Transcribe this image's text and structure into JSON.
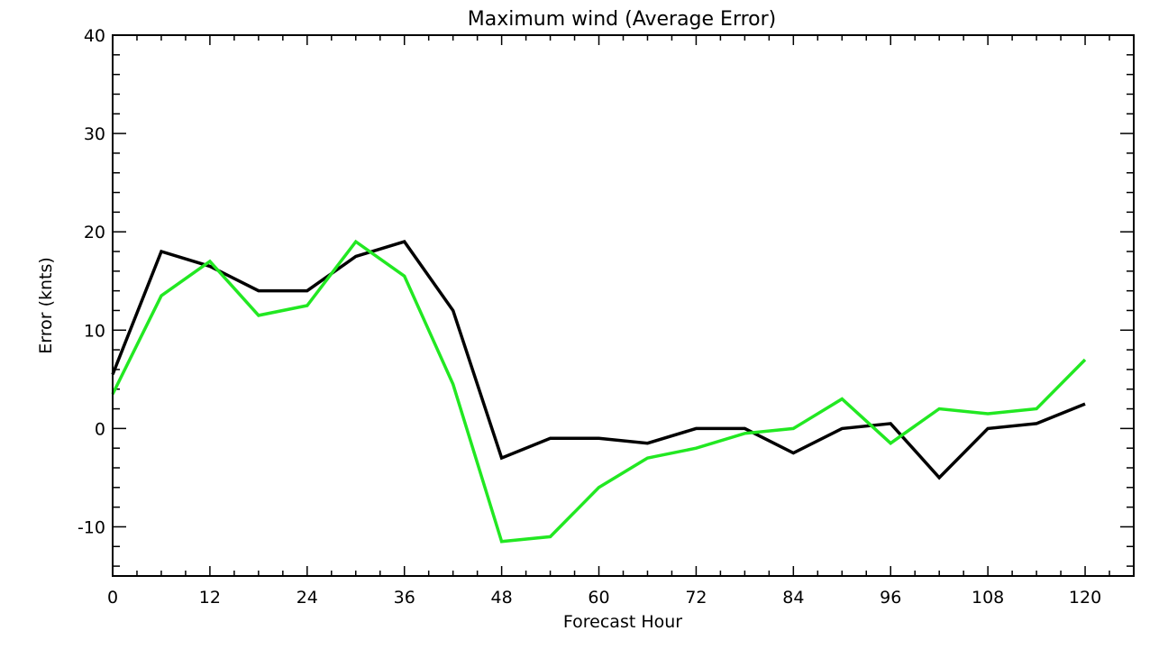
{
  "chart_data": {
    "type": "line",
    "title": "Maximum wind (Average Error)",
    "xlabel": "Forecast Hour",
    "ylabel": "Error (knts)",
    "xlim": [
      0,
      126
    ],
    "ylim": [
      -15,
      40
    ],
    "x_ticks": [
      "0",
      "12",
      "24",
      "36",
      "48",
      "60",
      "72",
      "84",
      "96",
      "108",
      "120"
    ],
    "y_ticks": [
      "-10",
      "0",
      "10",
      "20",
      "30",
      "40"
    ],
    "x": [
      0,
      6,
      12,
      18,
      24,
      30,
      36,
      42,
      48,
      54,
      60,
      66,
      72,
      78,
      84,
      90,
      96,
      102,
      108,
      114,
      120
    ],
    "series": [
      {
        "color": "#000000",
        "values": [
          5.5,
          18,
          16.5,
          14,
          14,
          17.5,
          19,
          12,
          -3,
          -1,
          -1,
          -1.5,
          0,
          0,
          -2.5,
          0,
          0.5,
          -5,
          0,
          0.5,
          2.5
        ]
      },
      {
        "color": "#22e822",
        "values": [
          3.5,
          13.5,
          17,
          11.5,
          12.5,
          19,
          15.5,
          4.5,
          -11.5,
          -11,
          -6,
          -3,
          -2,
          -0.5,
          0,
          3,
          -1.5,
          2,
          1.5,
          2,
          7
        ]
      }
    ],
    "grid": false,
    "legend": "none"
  }
}
